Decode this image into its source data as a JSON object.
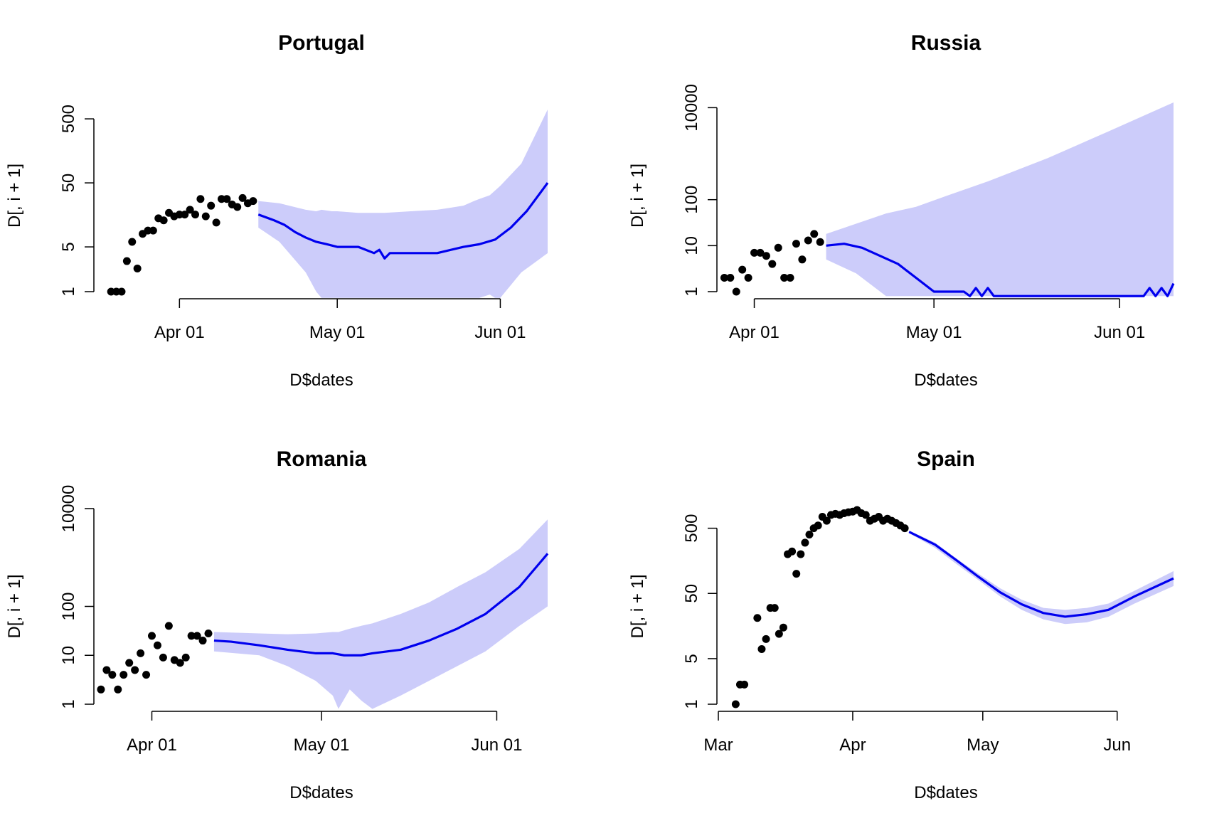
{
  "chart_data": [
    {
      "type": "line",
      "title": "Portugal",
      "xlabel": "D$dates",
      "ylabel": "D[, i + 1]",
      "y_scale": "log",
      "ylim": [
        1,
        1000
      ],
      "xlim": [
        "2020-03-16",
        "2020-06-10"
      ],
      "x_ticks": [
        {
          "date": "2020-04-01",
          "label": "Apr 01"
        },
        {
          "date": "2020-05-01",
          "label": "May 01"
        },
        {
          "date": "2020-06-01",
          "label": "Jun 01"
        }
      ],
      "y_ticks": [
        {
          "value": 1,
          "label": "1"
        },
        {
          "value": 5,
          "label": "5"
        },
        {
          "value": 50,
          "label": "50"
        },
        {
          "value": 500,
          "label": "500"
        }
      ],
      "series": [
        {
          "kind": "points",
          "color": "#000000",
          "x": [
            "2020-03-19",
            "2020-03-20",
            "2020-03-21",
            "2020-03-22",
            "2020-03-23",
            "2020-03-24",
            "2020-03-25",
            "2020-03-26",
            "2020-03-27",
            "2020-03-28",
            "2020-03-29",
            "2020-03-30",
            "2020-03-31",
            "2020-04-01",
            "2020-04-02",
            "2020-04-03",
            "2020-04-04",
            "2020-04-05",
            "2020-04-06",
            "2020-04-07",
            "2020-04-08",
            "2020-04-09",
            "2020-04-10",
            "2020-04-11",
            "2020-04-12",
            "2020-04-13",
            "2020-04-14",
            "2020-04-15"
          ],
          "y": [
            1,
            1,
            1,
            3,
            6,
            2.3,
            8,
            9,
            9,
            14,
            13,
            17,
            15,
            16,
            16,
            19,
            16,
            28,
            15,
            22,
            12,
            28,
            28,
            23,
            21,
            29,
            24,
            26
          ]
        },
        {
          "kind": "ribbon",
          "color": "#ccccfa",
          "x": [
            "2020-04-16",
            "2020-04-20",
            "2020-04-25",
            "2020-04-27",
            "2020-04-28",
            "2020-04-30",
            "2020-05-01",
            "2020-05-05",
            "2020-05-10",
            "2020-05-15",
            "2020-05-20",
            "2020-05-25",
            "2020-05-27",
            "2020-05-28",
            "2020-05-30",
            "2020-05-31",
            "2020-06-01",
            "2020-06-05",
            "2020-06-10"
          ],
          "lower": [
            10,
            6,
            2,
            1,
            0.8,
            0.8,
            0.8,
            0.8,
            0.8,
            0.8,
            0.8,
            0.8,
            0.8,
            0.8,
            0.9,
            0.8,
            0.8,
            2,
            4
          ],
          "upper": [
            26,
            24,
            19,
            18,
            19,
            18,
            18,
            17,
            17,
            18,
            19,
            22,
            26,
            28,
            32,
            38,
            45,
            100,
            700
          ]
        },
        {
          "kind": "line",
          "color": "#0000ee",
          "name": "",
          "x": [
            "2020-04-16",
            "2020-04-19",
            "2020-04-21",
            "2020-04-23",
            "2020-04-25",
            "2020-04-27",
            "2020-04-29",
            "2020-05-01",
            "2020-05-05",
            "2020-05-08",
            "2020-05-09",
            "2020-05-10",
            "2020-05-11",
            "2020-05-12",
            "2020-05-15",
            "2020-05-20",
            "2020-05-25",
            "2020-05-28",
            "2020-05-31",
            "2020-06-03",
            "2020-06-06",
            "2020-06-10"
          ],
          "y": [
            16,
            13,
            11,
            8.5,
            7,
            6,
            5.5,
            5,
            5,
            4,
            4.5,
            3.3,
            4,
            4,
            4,
            4,
            5,
            5.5,
            6.5,
            10,
            18,
            50
          ]
        }
      ]
    },
    {
      "type": "line",
      "title": "Russia",
      "xlabel": "D$dates",
      "ylabel": "D[, i + 1]",
      "y_scale": "log",
      "ylim": [
        1,
        15000
      ],
      "xlim": [
        "2020-03-26",
        "2020-06-10"
      ],
      "x_ticks": [
        {
          "date": "2020-04-01",
          "label": "Apr 01"
        },
        {
          "date": "2020-05-01",
          "label": "May 01"
        },
        {
          "date": "2020-06-01",
          "label": "Jun 01"
        }
      ],
      "y_ticks": [
        {
          "value": 1,
          "label": "1"
        },
        {
          "value": 10,
          "label": "10"
        },
        {
          "value": 100,
          "label": "100"
        },
        {
          "value": 10000,
          "label": "10000"
        }
      ],
      "series": [
        {
          "kind": "points",
          "color": "#000000",
          "x": [
            "2020-03-27",
            "2020-03-28",
            "2020-03-29",
            "2020-03-30",
            "2020-03-31",
            "2020-04-01",
            "2020-04-02",
            "2020-04-03",
            "2020-04-04",
            "2020-04-05",
            "2020-04-06",
            "2020-04-07",
            "2020-04-08",
            "2020-04-09",
            "2020-04-10",
            "2020-04-11",
            "2020-04-12"
          ],
          "y": [
            2,
            2,
            1,
            3,
            2,
            7,
            7,
            6,
            4,
            9,
            2,
            2,
            11,
            5,
            13,
            18,
            12
          ]
        },
        {
          "kind": "ribbon",
          "color": "#ccccfa",
          "x": [
            "2020-04-13",
            "2020-04-18",
            "2020-04-23",
            "2020-04-28",
            "2020-05-03",
            "2020-05-10",
            "2020-05-20",
            "2020-05-30",
            "2020-06-10"
          ],
          "lower": [
            5,
            2.5,
            0.8,
            0.8,
            0.8,
            0.8,
            0.8,
            0.8,
            0.8
          ],
          "upper": [
            18,
            30,
            50,
            70,
            120,
            250,
            800,
            3000,
            13000
          ]
        },
        {
          "kind": "line",
          "color": "#0000ee",
          "name": "",
          "x": [
            "2020-04-13",
            "2020-04-16",
            "2020-04-19",
            "2020-04-22",
            "2020-04-25",
            "2020-04-28",
            "2020-05-01",
            "2020-05-06",
            "2020-05-07",
            "2020-05-08",
            "2020-05-09",
            "2020-05-10",
            "2020-05-11",
            "2020-06-05",
            "2020-06-06",
            "2020-06-07",
            "2020-06-08",
            "2020-06-09",
            "2020-06-10"
          ],
          "y": [
            10,
            11,
            9,
            6,
            4,
            2,
            1,
            1,
            0.8,
            1.2,
            0.8,
            1.2,
            0.8,
            0.8,
            1.2,
            0.8,
            1.2,
            0.8,
            1.5
          ]
        }
      ]
    },
    {
      "type": "line",
      "title": "Romania",
      "xlabel": "D$dates",
      "ylabel": "D[, i + 1]",
      "y_scale": "log",
      "ylim": [
        1,
        10000
      ],
      "xlim": [
        "2020-03-22",
        "2020-06-10"
      ],
      "x_ticks": [
        {
          "date": "2020-04-01",
          "label": "Apr 01"
        },
        {
          "date": "2020-05-01",
          "label": "May 01"
        },
        {
          "date": "2020-06-01",
          "label": "Jun 01"
        }
      ],
      "y_ticks": [
        {
          "value": 1,
          "label": "1"
        },
        {
          "value": 10,
          "label": "10"
        },
        {
          "value": 100,
          "label": "100"
        },
        {
          "value": 10000,
          "label": "10000"
        }
      ],
      "series": [
        {
          "kind": "points",
          "color": "#000000",
          "x": [
            "2020-03-23",
            "2020-03-24",
            "2020-03-25",
            "2020-03-26",
            "2020-03-27",
            "2020-03-28",
            "2020-03-29",
            "2020-03-30",
            "2020-03-31",
            "2020-04-01",
            "2020-04-02",
            "2020-04-03",
            "2020-04-04",
            "2020-04-05",
            "2020-04-06",
            "2020-04-07",
            "2020-04-08",
            "2020-04-09",
            "2020-04-10",
            "2020-04-11"
          ],
          "y": [
            2,
            5,
            4,
            2,
            4,
            7,
            5,
            11,
            4,
            25,
            16,
            9,
            40,
            8,
            7,
            9,
            25,
            25,
            20,
            28
          ]
        },
        {
          "kind": "ribbon",
          "color": "#ccccfa",
          "x": [
            "2020-04-12",
            "2020-04-20",
            "2020-04-25",
            "2020-04-30",
            "2020-05-03",
            "2020-05-04",
            "2020-05-06",
            "2020-05-08",
            "2020-05-10",
            "2020-05-15",
            "2020-05-20",
            "2020-05-25",
            "2020-05-30",
            "2020-06-05",
            "2020-06-10"
          ],
          "lower": [
            12,
            10,
            6,
            3,
            1.5,
            0.8,
            2,
            1.2,
            0.8,
            1.5,
            3,
            6,
            12,
            40,
            100
          ],
          "upper": [
            30,
            28,
            27,
            28,
            30,
            30,
            35,
            40,
            45,
            70,
            120,
            250,
            500,
            1500,
            6000
          ]
        },
        {
          "kind": "line",
          "color": "#0000ee",
          "name": "",
          "x": [
            "2020-04-12",
            "2020-04-15",
            "2020-04-20",
            "2020-04-25",
            "2020-04-30",
            "2020-05-03",
            "2020-05-05",
            "2020-05-08",
            "2020-05-10",
            "2020-05-15",
            "2020-05-20",
            "2020-05-25",
            "2020-05-30",
            "2020-06-05",
            "2020-06-10"
          ],
          "y": [
            20,
            19,
            16,
            13,
            11,
            11,
            10,
            10,
            11,
            13,
            20,
            35,
            70,
            250,
            1200
          ]
        }
      ]
    },
    {
      "type": "line",
      "title": "Spain",
      "xlabel": "D$dates",
      "ylabel": "D[, i + 1]",
      "y_scale": "log",
      "ylim": [
        1,
        1000
      ],
      "xlim": [
        "2020-03-01",
        "2020-06-14"
      ],
      "x_ticks": [
        {
          "date": "2020-03-01",
          "label": "Mar"
        },
        {
          "date": "2020-04-01",
          "label": "Apr"
        },
        {
          "date": "2020-05-01",
          "label": "May"
        },
        {
          "date": "2020-06-01",
          "label": "Jun"
        }
      ],
      "y_ticks": [
        {
          "value": 1,
          "label": "1"
        },
        {
          "value": 5,
          "label": "5"
        },
        {
          "value": 50,
          "label": "50"
        },
        {
          "value": 500,
          "label": "500"
        }
      ],
      "series": [
        {
          "kind": "points",
          "color": "#000000",
          "x": [
            "2020-03-05",
            "2020-03-06",
            "2020-03-07",
            "2020-03-10",
            "2020-03-11",
            "2020-03-12",
            "2020-03-13",
            "2020-03-14",
            "2020-03-15",
            "2020-03-16",
            "2020-03-17",
            "2020-03-18",
            "2020-03-19",
            "2020-03-20",
            "2020-03-21",
            "2020-03-22",
            "2020-03-23",
            "2020-03-24",
            "2020-03-25",
            "2020-03-26",
            "2020-03-27",
            "2020-03-28",
            "2020-03-29",
            "2020-03-30",
            "2020-03-31",
            "2020-04-01",
            "2020-04-02",
            "2020-04-03",
            "2020-04-04",
            "2020-04-05",
            "2020-04-06",
            "2020-04-07",
            "2020-04-08",
            "2020-04-09",
            "2020-04-10",
            "2020-04-11",
            "2020-04-12",
            "2020-04-13"
          ],
          "y": [
            1,
            2,
            2,
            21,
            7,
            10,
            30,
            30,
            12,
            15,
            200,
            220,
            100,
            200,
            300,
            400,
            500,
            550,
            750,
            650,
            800,
            830,
            800,
            850,
            880,
            900,
            950,
            850,
            800,
            650,
            700,
            750,
            650,
            700,
            650,
            600,
            550,
            500
          ]
        },
        {
          "kind": "ribbon",
          "color": "#ccccfa",
          "x": [
            "2020-04-14",
            "2020-04-20",
            "2020-04-25",
            "2020-04-30",
            "2020-05-05",
            "2020-05-10",
            "2020-05-15",
            "2020-05-20",
            "2020-05-25",
            "2020-05-30",
            "2020-06-05",
            "2020-06-14"
          ],
          "lower": [
            420,
            250,
            140,
            80,
            45,
            28,
            20,
            17,
            18,
            22,
            35,
            65
          ],
          "upper": [
            460,
            300,
            170,
            100,
            60,
            40,
            30,
            28,
            30,
            35,
            55,
            110
          ]
        },
        {
          "kind": "line",
          "color": "#0000ee",
          "name": "",
          "x": [
            "2020-04-14",
            "2020-04-20",
            "2020-04-25",
            "2020-04-30",
            "2020-05-05",
            "2020-05-10",
            "2020-05-15",
            "2020-05-20",
            "2020-05-25",
            "2020-05-30",
            "2020-06-05",
            "2020-06-14"
          ],
          "y": [
            440,
            280,
            160,
            90,
            52,
            34,
            25,
            22,
            24,
            28,
            45,
            85
          ]
        }
      ]
    }
  ]
}
